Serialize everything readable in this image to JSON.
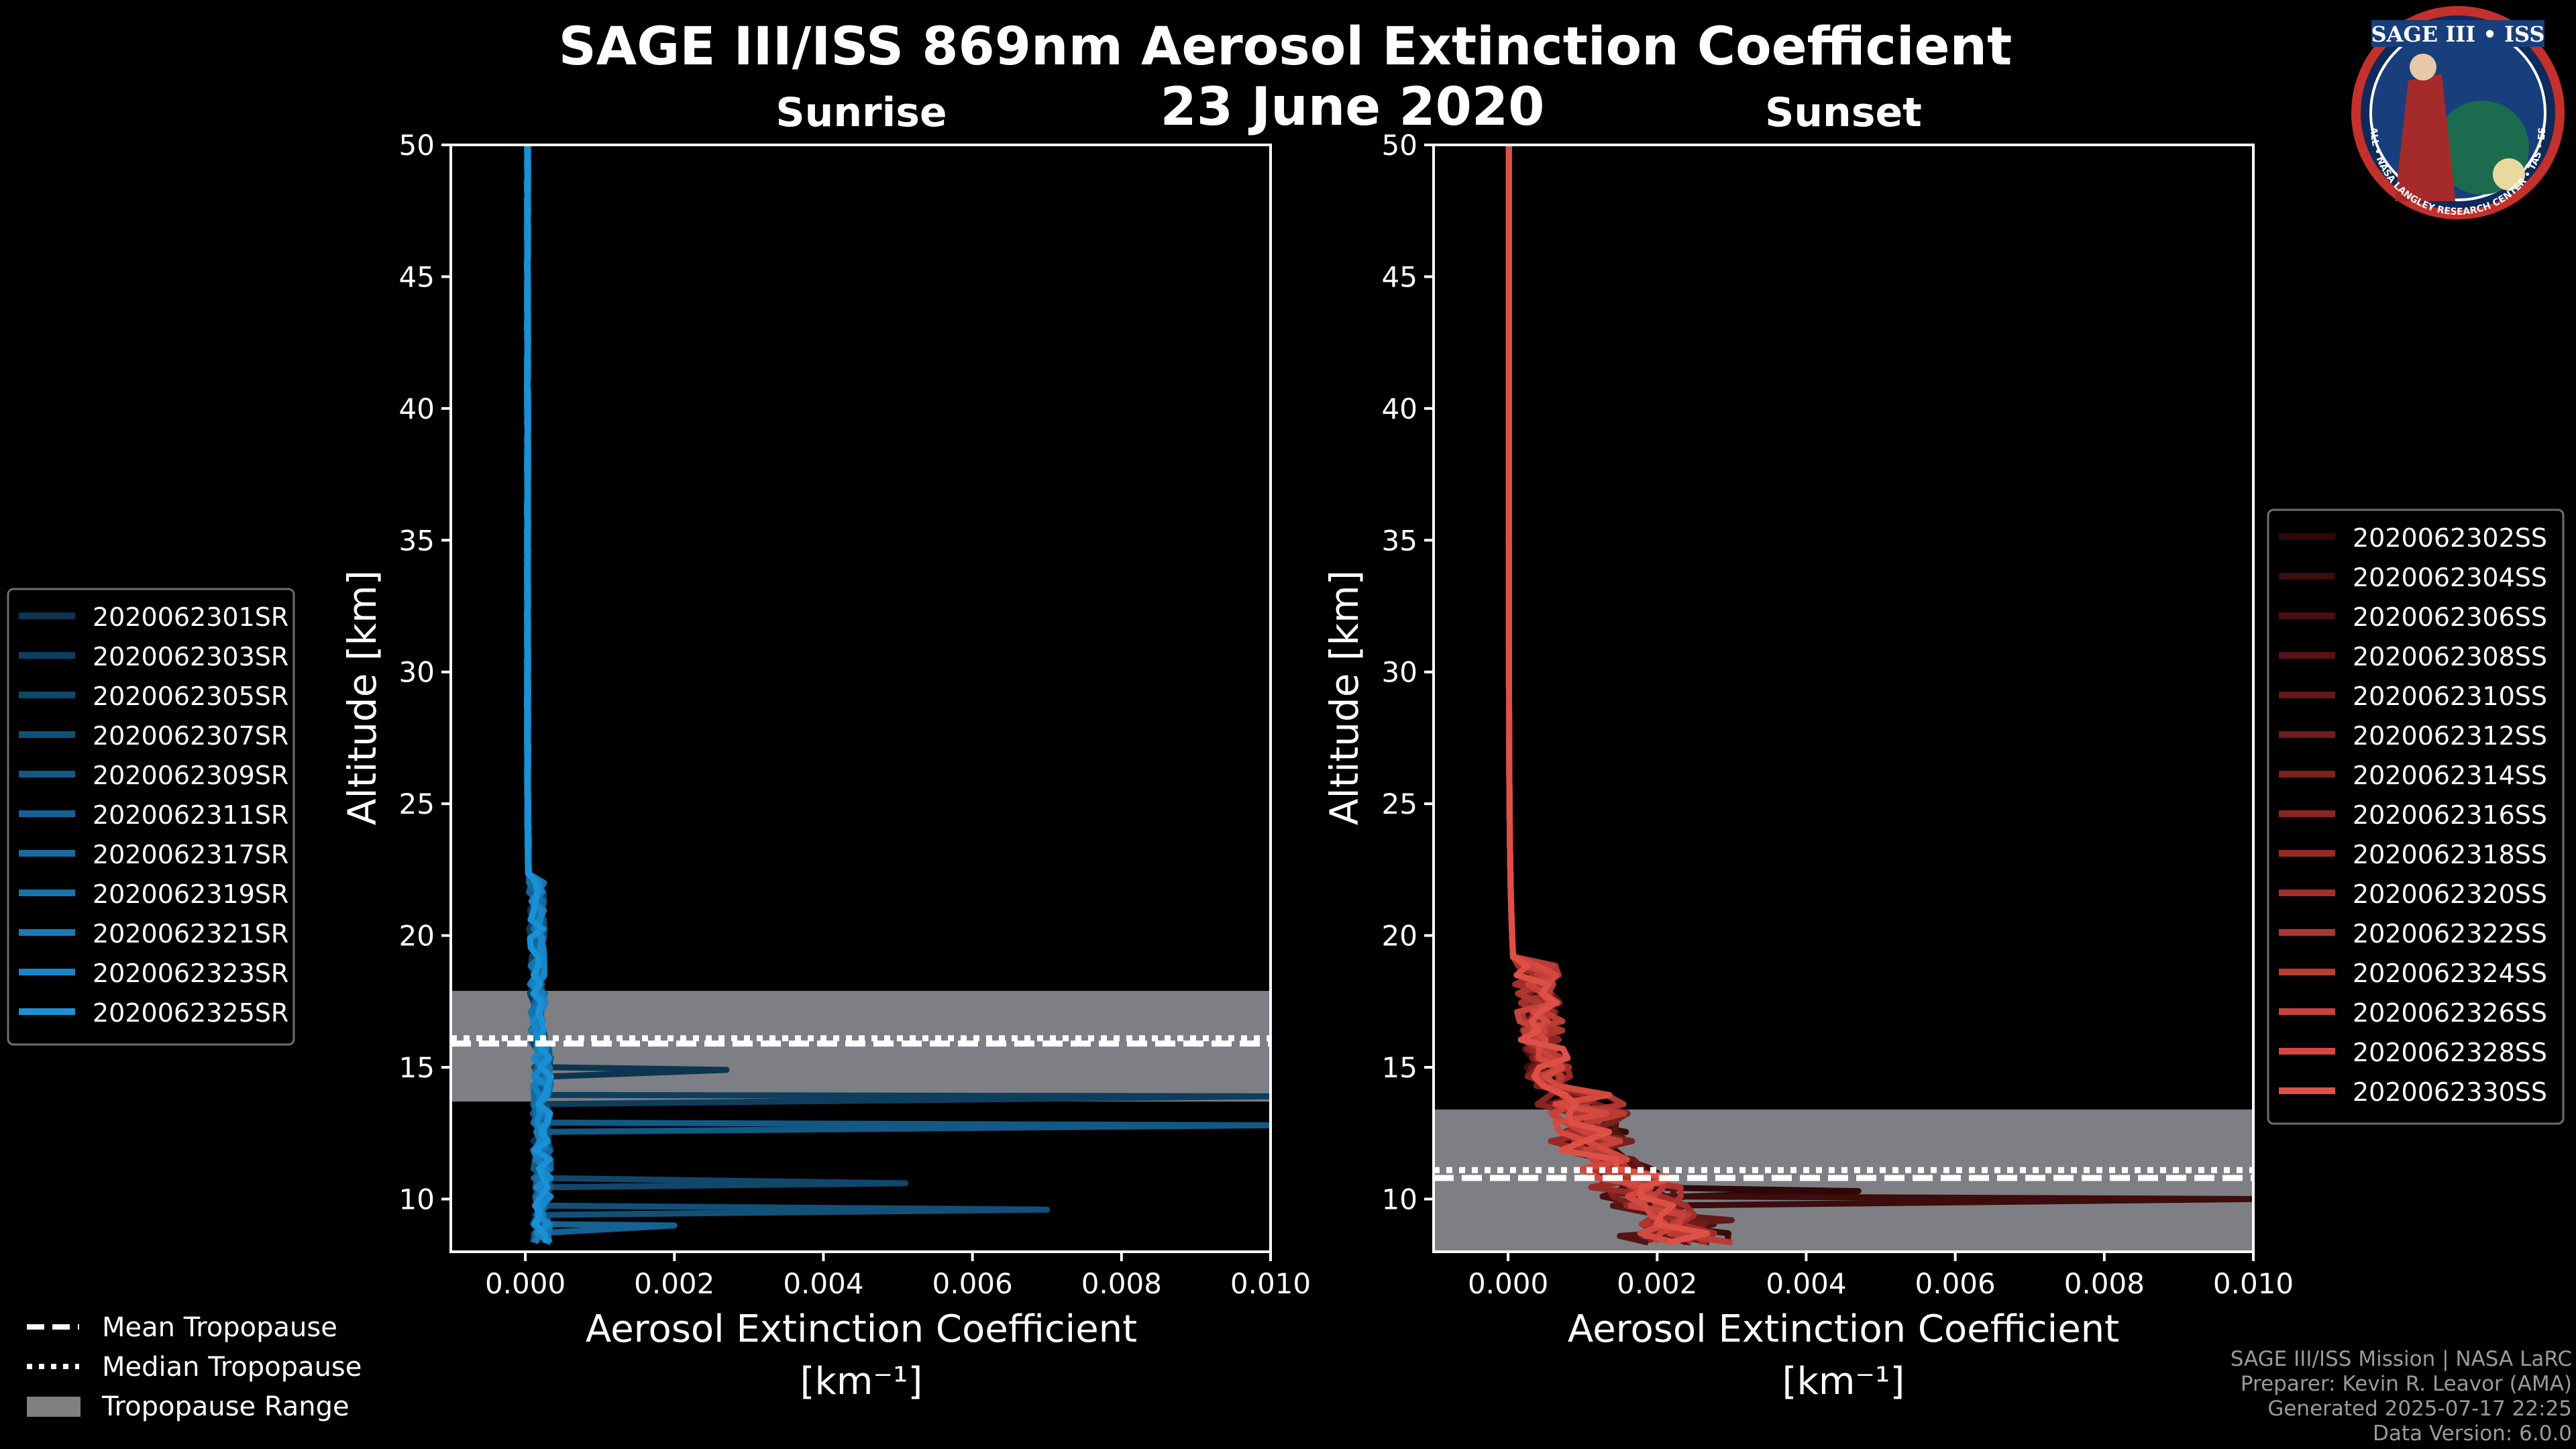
{
  "chart_data": {
    "type": "line",
    "title": "SAGE III/ISS 869nm Aerosol Extinction Coefficient",
    "subtitle": "23 June 2020",
    "xlim": [
      -0.001,
      0.01
    ],
    "ylim": [
      8,
      50
    ],
    "xticks": [
      "0.000",
      "0.002",
      "0.004",
      "0.006",
      "0.008",
      "0.010"
    ],
    "yticks": [
      "10",
      "15",
      "20",
      "25",
      "30",
      "35",
      "40",
      "45",
      "50"
    ],
    "xlabel_line1": "Aerosol Extinction Coefficient",
    "xlabel_line2": "[km⁻¹]",
    "ylabel": "Altitude [km]",
    "panels": [
      {
        "title": "Sunrise",
        "tropopause": {
          "mean": 15.9,
          "median": 16.1,
          "min": 13.7,
          "max": 17.9
        },
        "legend_entries": [
          "2020062301SR",
          "2020062303SR",
          "2020062305SR",
          "2020062307SR",
          "2020062309SR",
          "2020062311SR",
          "2020062317SR",
          "2020062319SR",
          "2020062321SR",
          "2020062323SR",
          "2020062325SR"
        ],
        "colors": [
          "#0c3550",
          "#0e3e5e",
          "#10476b",
          "#125078",
          "#135985",
          "#146293",
          "#156ba0",
          "#1674ad",
          "#177dbb",
          "#1886c8",
          "#1a90d6"
        ]
      },
      {
        "title": "Sunset",
        "tropopause": {
          "mean": 10.8,
          "median": 11.1,
          "min": 8.0,
          "max": 13.4
        },
        "legend_entries": [
          "2020062302SS",
          "2020062304SS",
          "2020062306SS",
          "2020062308SS",
          "2020062310SS",
          "2020062312SS",
          "2020062314SS",
          "2020062316SS",
          "2020062318SS",
          "2020062320SS",
          "2020062322SS",
          "2020062324SS",
          "2020062326SS",
          "2020062328SS",
          "2020062330SS"
        ],
        "colors": [
          "#2e0808",
          "#3d0c0c",
          "#4a1010",
          "#571414",
          "#641818",
          "#701c1a",
          "#7d211e",
          "#8a2622",
          "#962b26",
          "#a2302a",
          "#ae362f",
          "#ba3c35",
          "#c6423a",
          "#d24940",
          "#de5046"
        ]
      }
    ],
    "shared_legend": {
      "mean": "Mean Tropopause",
      "median": "Median Tropopause",
      "range": "Tropopause Range"
    }
  },
  "credits": [
    "SAGE III/ISS Mission | NASA LaRC",
    "Preparer: Kevin R. Leavor (AMA)",
    "Generated 2025-07-17 22:25",
    "Data Version: 6.0.0"
  ],
  "logo": {
    "text": "SAGE III • ISS",
    "ring": "BALL • NASA LANGLEY RESEARCH CENTER • TAS • ESA"
  }
}
